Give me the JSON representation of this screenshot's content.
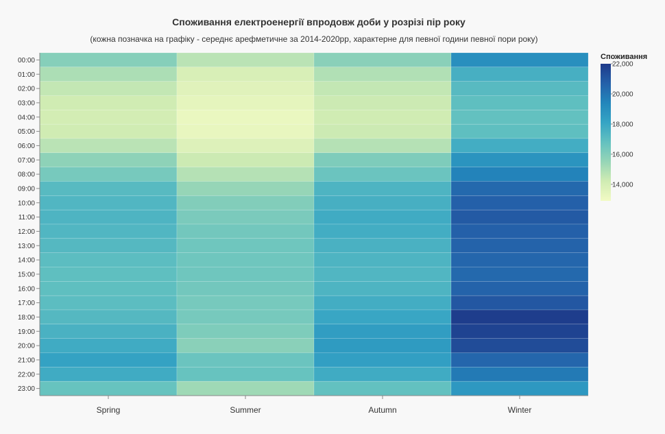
{
  "chart_data": {
    "type": "heatmap",
    "title": "Споживання електроенергії впродовж доби у розрізі пір року",
    "subtitle": "(кожна позначка на графіку - середнє арефметичне за 2014-2020рр, характерне для певної години певної пори року)",
    "x": [
      "Spring",
      "Summer",
      "Autumn",
      "Winter"
    ],
    "y": [
      "00:00",
      "01:00",
      "02:00",
      "03:00",
      "04:00",
      "05:00",
      "06:00",
      "07:00",
      "08:00",
      "09:00",
      "10:00",
      "11:00",
      "12:00",
      "13:00",
      "14:00",
      "15:00",
      "16:00",
      "17:00",
      "18:00",
      "19:00",
      "20:00",
      "21:00",
      "22:00",
      "23:00"
    ],
    "values": [
      [
        15900,
        14700,
        15800,
        19000
      ],
      [
        15000,
        13900,
        14900,
        17600
      ],
      [
        14500,
        13600,
        14500,
        17100
      ],
      [
        14200,
        13400,
        14300,
        16900
      ],
      [
        14100,
        13200,
        14200,
        16800
      ],
      [
        14200,
        13300,
        14300,
        16900
      ],
      [
        14700,
        13700,
        14800,
        17700
      ],
      [
        15700,
        14300,
        16100,
        18800
      ],
      [
        16300,
        14800,
        16600,
        19500
      ],
      [
        17100,
        15500,
        17400,
        20400
      ],
      [
        17300,
        16000,
        17600,
        20700
      ],
      [
        17400,
        16200,
        17800,
        20900
      ],
      [
        17300,
        16400,
        17700,
        20700
      ],
      [
        17200,
        16500,
        17500,
        20600
      ],
      [
        17000,
        16500,
        17400,
        20500
      ],
      [
        16900,
        16500,
        17300,
        20400
      ],
      [
        16900,
        16400,
        17400,
        20600
      ],
      [
        17000,
        16300,
        17700,
        21000
      ],
      [
        17200,
        16300,
        18000,
        21900
      ],
      [
        17500,
        16100,
        18400,
        21700
      ],
      [
        17800,
        15800,
        18500,
        21400
      ],
      [
        18200,
        16600,
        18300,
        20500
      ],
      [
        17800,
        16700,
        17800,
        19800
      ],
      [
        16700,
        15300,
        16800,
        18600
      ]
    ],
    "legend": {
      "title": "Споживання",
      "position": "right",
      "domain": [
        12900,
        22000
      ],
      "ticks": [
        {
          "value": 14000,
          "label": "14,000"
        },
        {
          "value": 16000,
          "label": "16,000"
        },
        {
          "value": 18000,
          "label": "18,000"
        },
        {
          "value": 20000,
          "label": "20,000"
        },
        {
          "value": 22000,
          "label": "22,000"
        }
      ]
    },
    "colors": [
      "#f2fac4",
      "#d0ecb3",
      "#96d5b7",
      "#63c1c0",
      "#35a4c4",
      "#2386bb",
      "#2460a9",
      "#1e3a8a"
    ]
  }
}
